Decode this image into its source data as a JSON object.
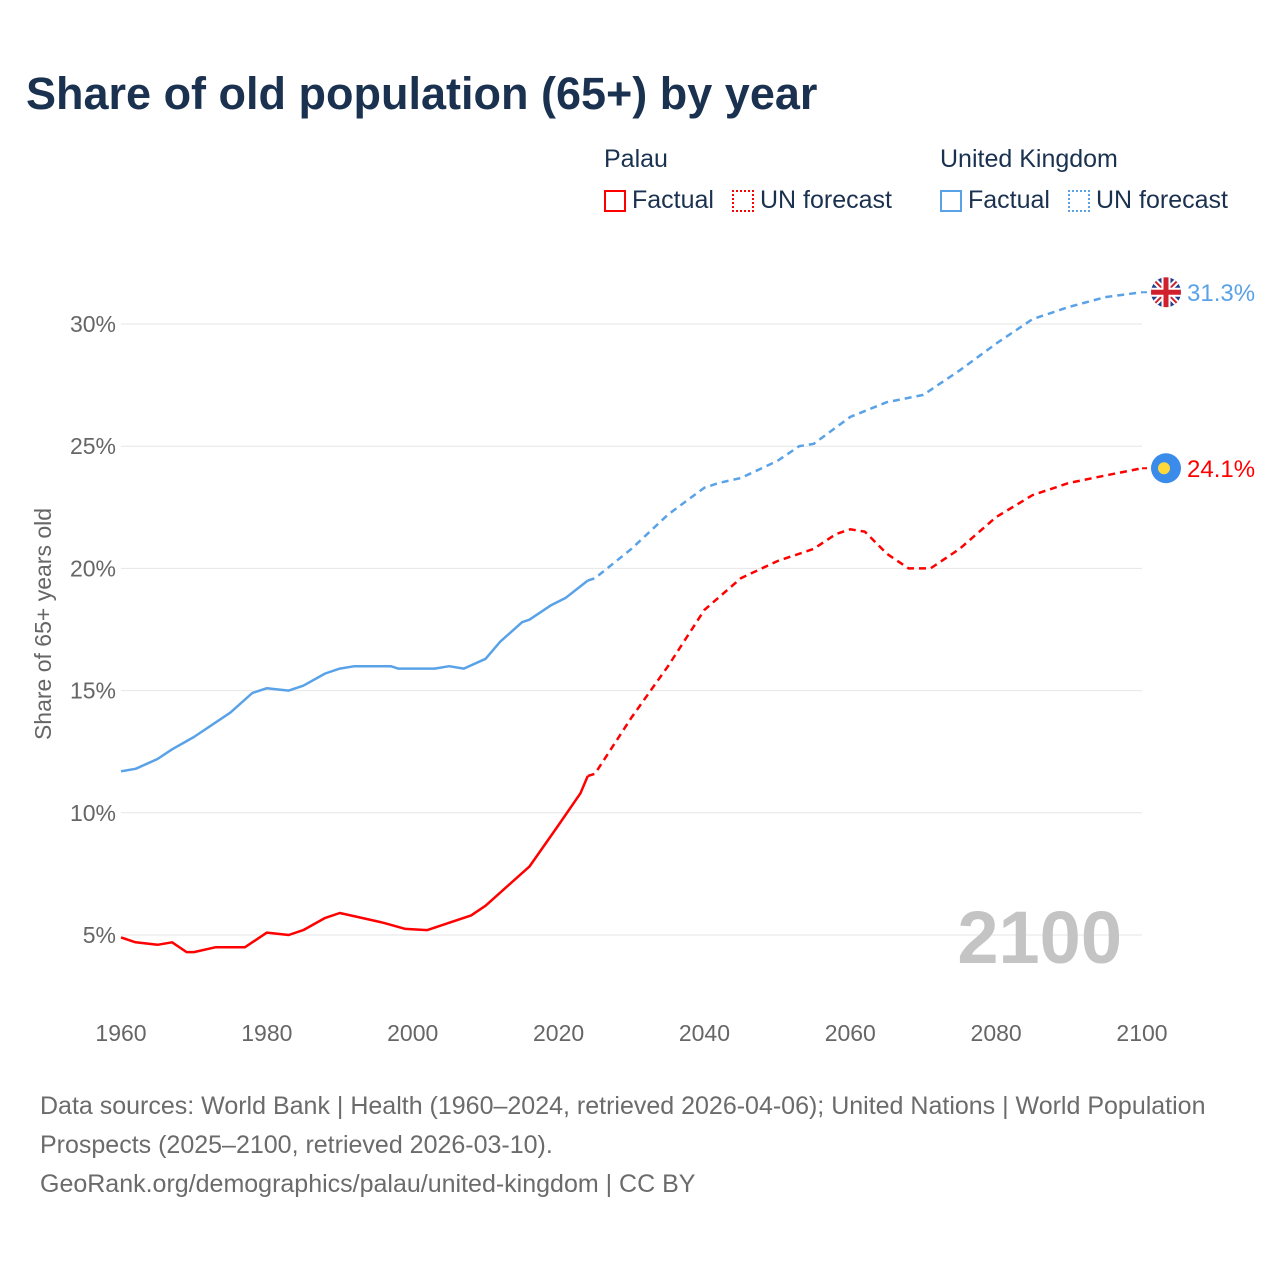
{
  "title": "Share of old population (65+) by year",
  "legend": [
    {
      "country": "Palau",
      "color": "#ff0000",
      "factual_label": "Factual",
      "forecast_label": "UN forecast"
    },
    {
      "country": "United Kingdom",
      "color": "#5aa2e8",
      "factual_label": "Factual",
      "forecast_label": "UN forecast"
    }
  ],
  "year_display": "2100",
  "footer": {
    "sources": "Data sources: World Bank | Health (1960–2024, retrieved 2026-04-06); United Nations | World Population Prospects (2025–2100, retrieved 2026-03-10).",
    "credit": "GeoRank.org/demographics/palau/united-kingdom | CC BY"
  },
  "chart_data": {
    "type": "line",
    "title": "Share of old population (65+) by year",
    "xlabel": "",
    "ylabel": "Share of 65+ years old",
    "xlim": [
      1960,
      2100
    ],
    "ylim": [
      2.5,
      32.5
    ],
    "x_ticks": [
      1960,
      1980,
      2000,
      2020,
      2040,
      2060,
      2080,
      2100
    ],
    "x_tick_labels": [
      "1960",
      "1980",
      "2000",
      "2020",
      "2040",
      "2060",
      "2080",
      "2100"
    ],
    "y_ticks": [
      5,
      10,
      15,
      20,
      25,
      30
    ],
    "y_tick_labels": [
      "5%",
      "10%",
      "15%",
      "20%",
      "25%",
      "30%"
    ],
    "grid": true,
    "forecast_start": 2024,
    "series": [
      {
        "name": "Palau",
        "color": "#ff0000",
        "flag": "palau-flag",
        "end_label": "24.1%",
        "points": [
          [
            1960,
            4.9
          ],
          [
            1962,
            4.7
          ],
          [
            1965,
            4.6
          ],
          [
            1967,
            4.7
          ],
          [
            1969,
            4.3
          ],
          [
            1970,
            4.3
          ],
          [
            1973,
            4.5
          ],
          [
            1977,
            4.5
          ],
          [
            1980,
            5.1
          ],
          [
            1983,
            5.0
          ],
          [
            1985,
            5.2
          ],
          [
            1988,
            5.7
          ],
          [
            1990,
            5.9
          ],
          [
            1993,
            5.7
          ],
          [
            1996,
            5.5
          ],
          [
            1999,
            5.25
          ],
          [
            2002,
            5.2
          ],
          [
            2006,
            5.6
          ],
          [
            2008,
            5.8
          ],
          [
            2010,
            6.2
          ],
          [
            2013,
            7.0
          ],
          [
            2016,
            7.8
          ],
          [
            2020,
            9.5
          ],
          [
            2023,
            10.8
          ],
          [
            2024,
            11.5
          ],
          [
            2025,
            11.6
          ],
          [
            2030,
            13.9
          ],
          [
            2035,
            16.0
          ],
          [
            2040,
            18.3
          ],
          [
            2045,
            19.6
          ],
          [
            2050,
            20.3
          ],
          [
            2055,
            20.8
          ],
          [
            2058,
            21.4
          ],
          [
            2060,
            21.6
          ],
          [
            2062,
            21.5
          ],
          [
            2065,
            20.6
          ],
          [
            2068,
            20.0
          ],
          [
            2071,
            20.0
          ],
          [
            2075,
            20.8
          ],
          [
            2080,
            22.1
          ],
          [
            2085,
            23.0
          ],
          [
            2090,
            23.5
          ],
          [
            2095,
            23.8
          ],
          [
            2100,
            24.1
          ]
        ]
      },
      {
        "name": "United Kingdom",
        "color": "#5aa2e8",
        "flag": "uk-flag",
        "end_label": "31.3%",
        "points": [
          [
            1960,
            11.7
          ],
          [
            1962,
            11.8
          ],
          [
            1965,
            12.2
          ],
          [
            1967,
            12.6
          ],
          [
            1970,
            13.1
          ],
          [
            1975,
            14.1
          ],
          [
            1978,
            14.9
          ],
          [
            1980,
            15.1
          ],
          [
            1983,
            15.0
          ],
          [
            1985,
            15.2
          ],
          [
            1988,
            15.7
          ],
          [
            1990,
            15.9
          ],
          [
            1992,
            16.0
          ],
          [
            1997,
            16.0
          ],
          [
            1998,
            15.9
          ],
          [
            2003,
            15.9
          ],
          [
            2005,
            16.0
          ],
          [
            2007,
            15.9
          ],
          [
            2010,
            16.3
          ],
          [
            2012,
            17.0
          ],
          [
            2015,
            17.8
          ],
          [
            2016,
            17.9
          ],
          [
            2019,
            18.5
          ],
          [
            2021,
            18.8
          ],
          [
            2024,
            19.5
          ],
          [
            2025,
            19.6
          ],
          [
            2030,
            20.8
          ],
          [
            2035,
            22.2
          ],
          [
            2040,
            23.3
          ],
          [
            2042,
            23.5
          ],
          [
            2045,
            23.7
          ],
          [
            2050,
            24.4
          ],
          [
            2053,
            25.0
          ],
          [
            2055,
            25.1
          ],
          [
            2060,
            26.2
          ],
          [
            2065,
            26.8
          ],
          [
            2070,
            27.1
          ],
          [
            2075,
            28.1
          ],
          [
            2080,
            29.2
          ],
          [
            2085,
            30.2
          ],
          [
            2090,
            30.7
          ],
          [
            2095,
            31.1
          ],
          [
            2100,
            31.3
          ]
        ]
      }
    ]
  }
}
